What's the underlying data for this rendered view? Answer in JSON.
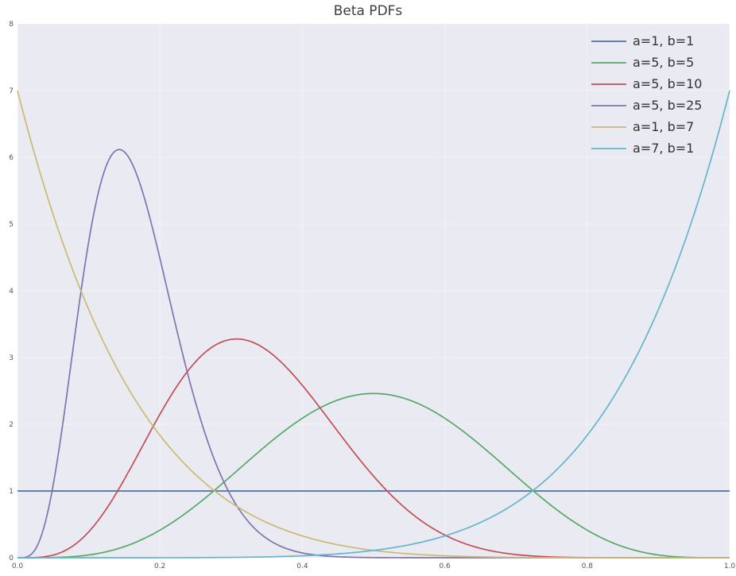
{
  "chart_data": {
    "type": "line",
    "title": "Beta PDFs",
    "xlabel": "",
    "ylabel": "",
    "xlim": [
      0,
      1
    ],
    "ylim": [
      0,
      8
    ],
    "xticks": [
      0.0,
      0.2,
      0.4,
      0.6,
      0.8,
      1.0
    ],
    "xtick_labels": [
      "0.0",
      "0.2",
      "0.4",
      "0.6",
      "0.8",
      "1.0"
    ],
    "yticks": [
      0,
      1,
      2,
      3,
      4,
      5,
      6,
      7,
      8
    ],
    "ytick_labels": [
      "0",
      "1",
      "2",
      "3",
      "4",
      "5",
      "6",
      "7",
      "8"
    ],
    "grid": true,
    "legend_position": "upper right",
    "plot_background": "#eaeaf2",
    "grid_color": "#ffffff",
    "text_color": "#3d3d3d",
    "tick_label_color": "#555555",
    "curve_family": "Beta probability density function pdf(x) = x^(a-1)*(1-x)^(b-1)/B(a,b)",
    "series": [
      {
        "name": "a=1, b=1",
        "a": 1,
        "b": 1,
        "color": "#4c72b0",
        "shape": "constant",
        "mode_x": null,
        "peak_y": 1.0
      },
      {
        "name": "a=5, b=5",
        "a": 5,
        "b": 5,
        "color": "#55a868",
        "shape": "bell",
        "mode_x": 0.5,
        "peak_y": 2.46
      },
      {
        "name": "a=5, b=10",
        "a": 5,
        "b": 10,
        "color": "#c44e52",
        "shape": "bell",
        "mode_x": 0.308,
        "peak_y": 3.28
      },
      {
        "name": "a=5, b=25",
        "a": 5,
        "b": 25,
        "color": "#8172b2",
        "shape": "bell",
        "mode_x": 0.143,
        "peak_y": 6.11
      },
      {
        "name": "a=1, b=7",
        "a": 1,
        "b": 7,
        "color": "#ccb974",
        "shape": "decreasing",
        "mode_x": 0.0,
        "peak_y": 7.0
      },
      {
        "name": "a=7, b=1",
        "a": 7,
        "b": 1,
        "color": "#64b5cd",
        "shape": "increasing",
        "mode_x": 1.0,
        "peak_y": 7.0
      }
    ]
  }
}
